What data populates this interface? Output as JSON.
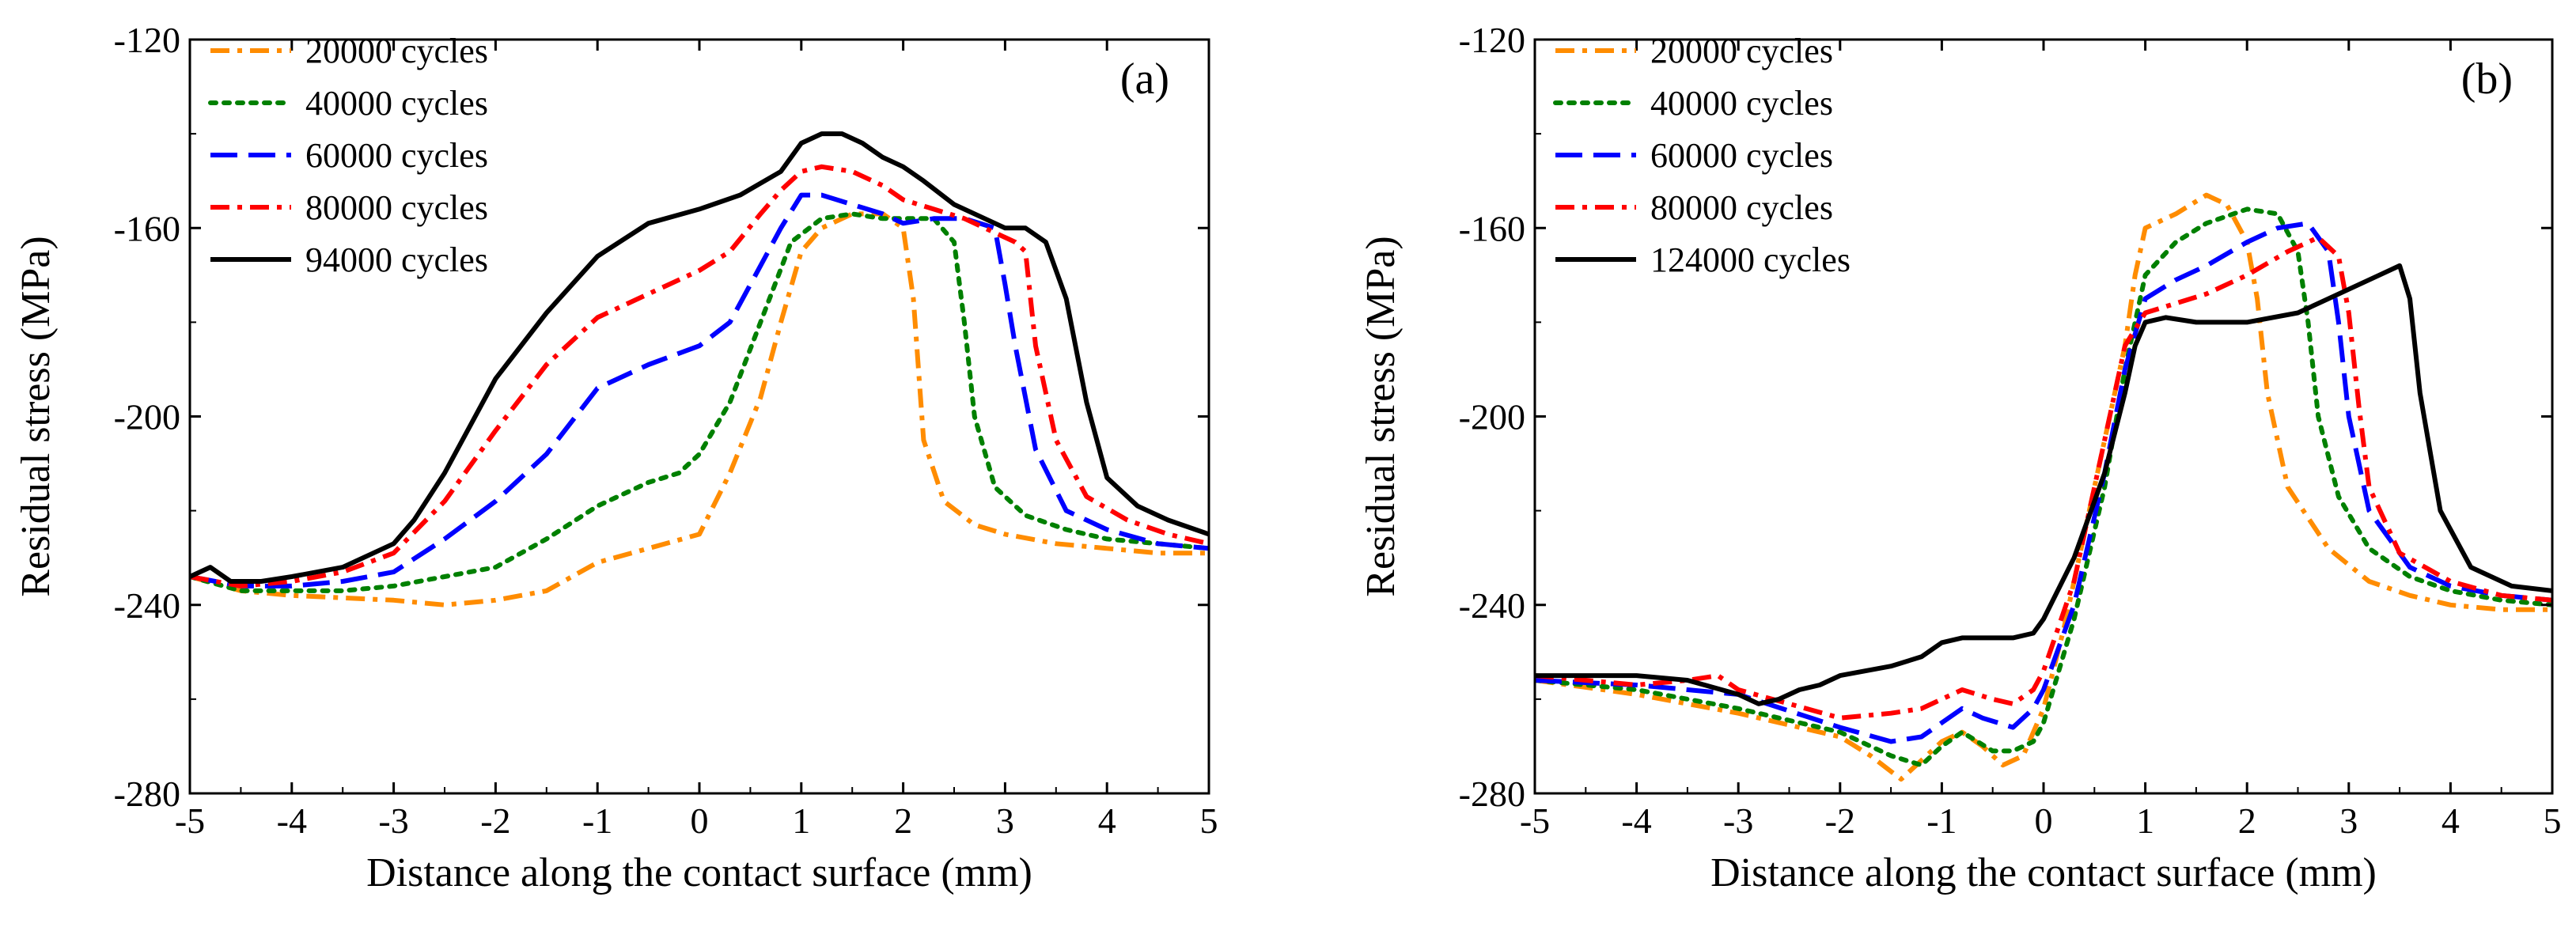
{
  "chart_data": [
    {
      "type": "line",
      "panel_label": "(a)",
      "xlabel": "Distance along the contact surface (mm)",
      "ylabel": "Residual stress (MPa)",
      "xlim": [
        -5,
        5
      ],
      "ylim": [
        -280,
        -120
      ],
      "xticks": [
        -5,
        -4,
        -3,
        -2,
        -1,
        0,
        1,
        2,
        3,
        4,
        5
      ],
      "yticks": [
        -280,
        -240,
        -200,
        -160,
        -120
      ],
      "legend_position": "top-left",
      "series": [
        {
          "name": "20000 cycles",
          "color": "#ff8c00",
          "dash": "dashdot",
          "x": [
            -5,
            -4.5,
            -4,
            -3.5,
            -3,
            -2.5,
            -2,
            -1.5,
            -1,
            -0.5,
            0,
            0.3,
            0.6,
            0.8,
            1.0,
            1.2,
            1.5,
            1.8,
            2.0,
            2.1,
            2.2,
            2.4,
            2.7,
            3.0,
            3.5,
            4,
            4.5,
            5
          ],
          "y": [
            -234,
            -237,
            -238,
            -238.5,
            -239,
            -240,
            -239,
            -237,
            -231,
            -228,
            -225,
            -212,
            -196,
            -180,
            -165,
            -160,
            -157,
            -157,
            -160,
            -175,
            -205,
            -218,
            -223,
            -225,
            -227,
            -228,
            -229,
            -229
          ]
        },
        {
          "name": "40000 cycles",
          "color": "#008000",
          "dash": "dotted",
          "x": [
            -5,
            -4.5,
            -4,
            -3.5,
            -3,
            -2.5,
            -2,
            -1.5,
            -1,
            -0.5,
            -0.2,
            0,
            0.3,
            0.6,
            0.9,
            1.2,
            1.5,
            1.8,
            2.0,
            2.3,
            2.5,
            2.6,
            2.7,
            2.9,
            3.2,
            3.6,
            4,
            4.5,
            5
          ],
          "y": [
            -234,
            -237,
            -237,
            -237,
            -236,
            -234,
            -232,
            -226,
            -219,
            -214,
            -212,
            -208,
            -197,
            -180,
            -163,
            -158,
            -157,
            -158,
            -158,
            -158,
            -163,
            -180,
            -200,
            -215,
            -221,
            -224,
            -226,
            -227,
            -228
          ]
        },
        {
          "name": "60000 cycles",
          "color": "#0000ff",
          "dash": "longdash",
          "x": [
            -5,
            -4.5,
            -4,
            -3.5,
            -3,
            -2.5,
            -2,
            -1.5,
            -1,
            -0.5,
            0,
            0.3,
            0.6,
            0.8,
            1.0,
            1.2,
            1.5,
            1.8,
            2.0,
            2.3,
            2.6,
            2.9,
            3.0,
            3.1,
            3.3,
            3.6,
            4,
            4.5,
            5
          ],
          "y": [
            -234,
            -236,
            -236,
            -235,
            -233,
            -226,
            -218,
            -208,
            -194,
            -189,
            -185,
            -180,
            -168,
            -160,
            -153,
            -153,
            -155,
            -157,
            -159,
            -158,
            -158,
            -160,
            -172,
            -185,
            -207,
            -220,
            -224,
            -227,
            -228
          ]
        },
        {
          "name": "80000 cycles",
          "color": "#ff0000",
          "dash": "dashdot",
          "x": [
            -5,
            -4.5,
            -4,
            -3.5,
            -3,
            -2.5,
            -2,
            -1.5,
            -1,
            -0.5,
            0,
            0.3,
            0.6,
            0.8,
            1.0,
            1.2,
            1.5,
            1.8,
            2.0,
            2.3,
            2.6,
            2.9,
            3.1,
            3.2,
            3.3,
            3.5,
            3.8,
            4.2,
            4.6,
            5
          ],
          "y": [
            -234,
            -236,
            -235,
            -233,
            -229,
            -218,
            -203,
            -189,
            -179,
            -174,
            -169,
            -165,
            -157,
            -152,
            -148,
            -147,
            -148,
            -151,
            -154,
            -156,
            -158,
            -161,
            -163,
            -165,
            -185,
            -205,
            -217,
            -222,
            -225,
            -227
          ]
        },
        {
          "name": "94000 cycles",
          "color": "#000000",
          "dash": "solid",
          "x": [
            -5,
            -4.8,
            -4.6,
            -4.3,
            -4,
            -3.5,
            -3,
            -2.8,
            -2.5,
            -2,
            -1.5,
            -1,
            -0.5,
            0,
            0.4,
            0.8,
            1.0,
            1.2,
            1.4,
            1.6,
            1.8,
            2.0,
            2.2,
            2.5,
            2.8,
            3.0,
            3.2,
            3.4,
            3.6,
            3.8,
            4.0,
            4.3,
            4.6,
            5
          ],
          "y": [
            -234,
            -232,
            -235,
            -235,
            -234,
            -232,
            -227,
            -222,
            -212,
            -192,
            -178,
            -166,
            -159,
            -156,
            -153,
            -148,
            -142,
            -140,
            -140,
            -142,
            -145,
            -147,
            -150,
            -155,
            -158,
            -160,
            -160,
            -163,
            -175,
            -197,
            -213,
            -219,
            -222,
            -225
          ]
        }
      ]
    },
    {
      "type": "line",
      "panel_label": "(b)",
      "xlabel": "Distance along the contact surface (mm)",
      "ylabel": "Residual stress (MPa)",
      "xlim": [
        -5,
        5
      ],
      "ylim": [
        -280,
        -120
      ],
      "xticks": [
        -5,
        -4,
        -3,
        -2,
        -1,
        0,
        1,
        2,
        3,
        4,
        5
      ],
      "yticks": [
        -280,
        -240,
        -200,
        -160,
        -120
      ],
      "legend_position": "top-left",
      "series": [
        {
          "name": "20000 cycles",
          "color": "#ff8c00",
          "dash": "dashdot",
          "x": [
            -5,
            -4,
            -3,
            -2,
            -1.7,
            -1.4,
            -1.2,
            -1.0,
            -0.8,
            -0.6,
            -0.4,
            -0.2,
            0,
            0.2,
            0.4,
            0.6,
            0.8,
            0.9,
            1.0,
            1.3,
            1.6,
            1.8,
            2.0,
            2.1,
            2.2,
            2.4,
            2.8,
            3.2,
            3.6,
            4,
            4.5,
            5
          ],
          "y": [
            -256,
            -259,
            -263,
            -268,
            -272,
            -277,
            -273,
            -269,
            -267,
            -270,
            -274,
            -272,
            -262,
            -245,
            -225,
            -205,
            -185,
            -170,
            -160,
            -157,
            -153,
            -155,
            -163,
            -175,
            -195,
            -215,
            -228,
            -235,
            -238,
            -240,
            -241,
            -241
          ]
        },
        {
          "name": "40000 cycles",
          "color": "#008000",
          "dash": "dotted",
          "x": [
            -5,
            -4,
            -3,
            -2,
            -1.5,
            -1.2,
            -1,
            -0.8,
            -0.5,
            -0.3,
            -0.1,
            0,
            0.3,
            0.6,
            0.8,
            1.0,
            1.3,
            1.6,
            2.0,
            2.3,
            2.5,
            2.6,
            2.7,
            2.9,
            3.2,
            3.6,
            4,
            4.5,
            5
          ],
          "y": [
            -256,
            -258,
            -262,
            -267,
            -272,
            -274,
            -270,
            -267,
            -271,
            -271,
            -269,
            -265,
            -243,
            -215,
            -190,
            -170,
            -163,
            -159,
            -156,
            -157,
            -165,
            -180,
            -200,
            -217,
            -228,
            -234,
            -237,
            -239,
            -240
          ]
        },
        {
          "name": "60000 cycles",
          "color": "#0000ff",
          "dash": "longdash",
          "x": [
            -5,
            -4,
            -3,
            -2,
            -1.5,
            -1.2,
            -1.0,
            -0.8,
            -0.6,
            -0.3,
            -0.1,
            0,
            0.3,
            0.6,
            0.8,
            1.0,
            1.3,
            1.6,
            2.0,
            2.3,
            2.6,
            2.8,
            2.9,
            3.0,
            3.2,
            3.6,
            4,
            4.5,
            5
          ],
          "y": [
            -256,
            -257,
            -259,
            -266,
            -269,
            -268,
            -265,
            -262,
            -264,
            -266,
            -262,
            -258,
            -240,
            -212,
            -190,
            -175,
            -171,
            -168,
            -163,
            -160,
            -159,
            -165,
            -180,
            -200,
            -220,
            -232,
            -236,
            -238,
            -239
          ]
        },
        {
          "name": "80000 cycles",
          "color": "#ff0000",
          "dash": "dashdot",
          "x": [
            -5,
            -4.5,
            -4,
            -3.5,
            -3.2,
            -3,
            -2.5,
            -2,
            -1.5,
            -1.2,
            -1.0,
            -0.8,
            -0.5,
            -0.3,
            -0.1,
            0,
            0.3,
            0.6,
            0.8,
            1.0,
            1.3,
            1.6,
            2.0,
            2.4,
            2.7,
            2.9,
            3.0,
            3.1,
            3.2,
            3.5,
            4,
            4.5,
            5
          ],
          "y": [
            -255,
            -256,
            -257,
            -256,
            -255,
            -258,
            -261,
            -264,
            -263,
            -262,
            -260,
            -258,
            -260,
            -261,
            -258,
            -254,
            -235,
            -205,
            -185,
            -178,
            -176,
            -174,
            -170,
            -165,
            -162,
            -166,
            -178,
            -198,
            -215,
            -229,
            -235,
            -238,
            -239
          ]
        },
        {
          "name": "124000 cycles",
          "color": "#000000",
          "dash": "solid",
          "x": [
            -5,
            -4.5,
            -4,
            -3.5,
            -3,
            -2.8,
            -2.6,
            -2.4,
            -2.2,
            -2,
            -1.5,
            -1.2,
            -1,
            -0.8,
            -0.5,
            -0.3,
            -0.1,
            0,
            0.3,
            0.6,
            0.8,
            0.9,
            1.0,
            1.2,
            1.5,
            2.0,
            2.5,
            3.0,
            3.3,
            3.5,
            3.6,
            3.7,
            3.9,
            4.2,
            4.6,
            5
          ],
          "y": [
            -255,
            -255,
            -255,
            -256,
            -259,
            -261,
            -260,
            -258,
            -257,
            -255,
            -253,
            -251,
            -248,
            -247,
            -247,
            -247,
            -246,
            -243,
            -230,
            -212,
            -195,
            -185,
            -180,
            -179,
            -180,
            -180,
            -178,
            -173,
            -170,
            -168,
            -175,
            -195,
            -220,
            -232,
            -236,
            -237
          ]
        }
      ]
    }
  ]
}
